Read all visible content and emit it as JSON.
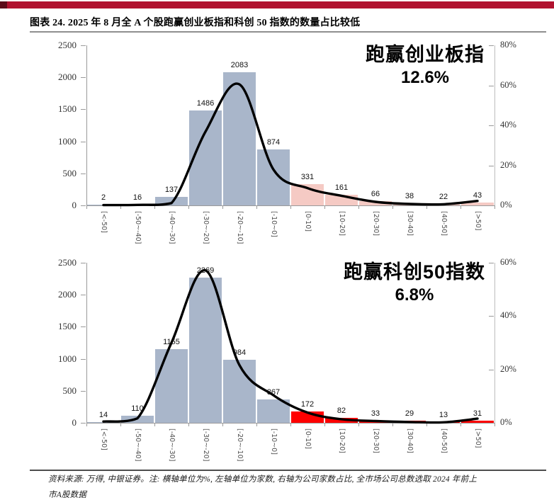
{
  "page": {
    "banner_color": "#B1122F",
    "title": "图表 24. 2025 年 8 月全 A 个股跑赢创业板指和科创 50 指数的数量占比较低",
    "footer_line1": "资料来源: 万得, 中银证券。注: 横轴单位为%, 左轴单位为家数, 右轴为公司家数占比, 全市场公司总数选取 2024 年前上",
    "footer_line2": "市A股数据"
  },
  "chart_data": [
    {
      "type": "bar",
      "annotation_title": "跑赢创业板指",
      "annotation_value": "12.6%",
      "categories": [
        "[<-50]",
        "[-50~-40]",
        "[-40~-30]",
        "[-30~-20]",
        "[-20~-10]",
        "[-10~0]",
        "[0-10]",
        "[10-20]",
        "[20-30]",
        "[30-40]",
        "[40-50]",
        "[>50]"
      ],
      "values": [
        2,
        16,
        137,
        1486,
        2083,
        874,
        331,
        161,
        66,
        38,
        22,
        43
      ],
      "curve_values": [
        5,
        8,
        35,
        1150,
        1890,
        560,
        270,
        150,
        55,
        22,
        18,
        70
      ],
      "left_axis": {
        "min": 0,
        "max": 2500,
        "tick_step": 500,
        "tick_labels": [
          "0",
          "500",
          "1000",
          "1500",
          "2000",
          "2500"
        ]
      },
      "right_axis": {
        "min": 0,
        "max": 80,
        "tick_step": 20,
        "tick_labels": [
          "0%",
          "20%",
          "40%",
          "60%",
          "80%"
        ]
      },
      "negative_bar_color": "#A9B6CA",
      "positive_bar_color": "#F5CAC4",
      "positive_start_index": 6,
      "line_color": "#000000",
      "legend_position": "none",
      "grid": false
    },
    {
      "type": "bar",
      "annotation_title": "跑赢科创50指数",
      "annotation_value": "6.8%",
      "categories": [
        "[<-50]",
        "[-50~-40]",
        "[-40~-30]",
        "[-30~-20]",
        "[-20~-10]",
        "[-10~0]",
        "[0-10]",
        "[10-20]",
        "[20-30]",
        "[30-40]",
        "[40-50]",
        "[>50]"
      ],
      "values": [
        14,
        110,
        1155,
        2269,
        984,
        367,
        172,
        82,
        33,
        29,
        13,
        31
      ],
      "curve_values": [
        20,
        70,
        1250,
        2380,
        900,
        430,
        160,
        55,
        28,
        12,
        8,
        65
      ],
      "left_axis": {
        "min": 0,
        "max": 2500,
        "tick_step": 500,
        "tick_labels": [
          "0",
          "500",
          "1000",
          "1500",
          "2000",
          "2500"
        ]
      },
      "right_axis": {
        "min": 0,
        "max": 60,
        "tick_step": 20,
        "tick_labels": [
          "0%",
          "20%",
          "40%",
          "60%"
        ]
      },
      "negative_bar_color": "#A9B6CA",
      "positive_bar_color": "#FF0000",
      "positive_start_index": 6,
      "line_color": "#000000",
      "legend_position": "none",
      "grid": false
    }
  ]
}
